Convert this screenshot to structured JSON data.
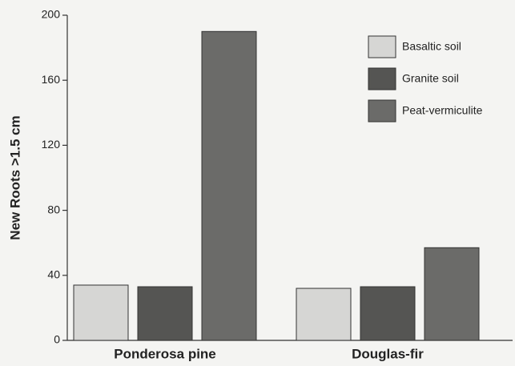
{
  "chart_data": {
    "type": "bar",
    "ylabel": "New Roots >1.5 cm",
    "categories": [
      "Ponderosa pine",
      "Douglas-fir"
    ],
    "series": [
      {
        "name": "Basaltic soil",
        "color": "#d6d6d4",
        "values": [
          34,
          32
        ]
      },
      {
        "name": "Granite soil",
        "color": "#555553",
        "values": [
          33,
          33
        ]
      },
      {
        "name": "Peat-vermiculite",
        "color": "#6b6b69",
        "values": [
          190,
          57
        ]
      }
    ],
    "ylim": [
      0,
      200
    ],
    "yticks": [
      0,
      40,
      80,
      120,
      160,
      200
    ],
    "legend": "upper right"
  }
}
